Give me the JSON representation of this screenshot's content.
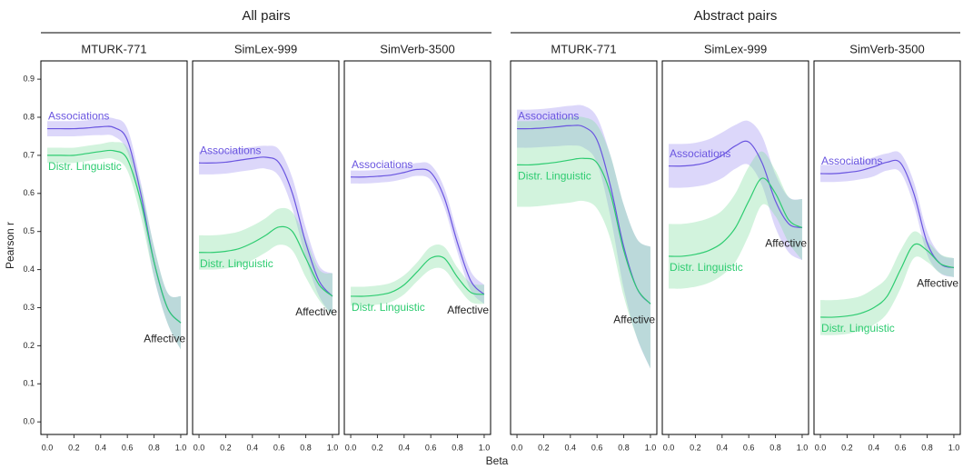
{
  "groups": [
    {
      "title": "All pairs"
    },
    {
      "title": "Abstract pairs"
    }
  ],
  "y_label": "Pearson r",
  "x_label": "Beta",
  "ylim": [
    -0.033,
    0.948
  ],
  "yticks": [
    {
      "value": 0,
      "label": "0.0"
    },
    0.1,
    0.2,
    0.3,
    0.4,
    0.5,
    0.6,
    0.7,
    0.8,
    0.9
  ],
  "xlim": [
    -0.048,
    1.048
  ],
  "xticks": [
    {
      "value": 0,
      "label": "0.0"
    },
    0.2,
    0.4,
    0.6,
    0.8,
    {
      "value": 1,
      "label": "1.0"
    }
  ],
  "chart_data": [
    {
      "type": "line",
      "title": "MTURK-771",
      "annotation": "Affective",
      "x": [
        0,
        0.1,
        0.2,
        0.3,
        0.4,
        0.5,
        0.6,
        0.7,
        0.8,
        0.9,
        1
      ],
      "series": [
        {
          "name": "Associations",
          "color": "#6a55e0",
          "band_color": "#9b8cf2",
          "values": [
            0.77,
            0.77,
            0.77,
            0.772,
            0.775,
            0.773,
            0.74,
            0.6,
            0.42,
            0.3,
            0.26
          ],
          "upper": [
            0.79,
            0.79,
            0.79,
            0.792,
            0.797,
            0.797,
            0.77,
            0.63,
            0.46,
            0.34,
            0.33
          ],
          "lower": [
            0.75,
            0.75,
            0.75,
            0.752,
            0.753,
            0.75,
            0.71,
            0.57,
            0.38,
            0.26,
            0.19
          ]
        },
        {
          "name": "Distr. Linguistic",
          "color": "#2ecc71",
          "band_color": "#7ddc9f",
          "values": [
            0.7,
            0.7,
            0.7,
            0.705,
            0.71,
            0.712,
            0.69,
            0.58,
            0.42,
            0.3,
            0.26
          ],
          "upper": [
            0.72,
            0.72,
            0.72,
            0.725,
            0.73,
            0.735,
            0.72,
            0.62,
            0.46,
            0.34,
            0.33
          ],
          "lower": [
            0.68,
            0.68,
            0.68,
            0.685,
            0.69,
            0.69,
            0.66,
            0.54,
            0.38,
            0.26,
            0.19
          ]
        }
      ]
    },
    {
      "type": "line",
      "title": "SimLex-999",
      "annotation": "Affective",
      "x": [
        0,
        0.1,
        0.2,
        0.3,
        0.4,
        0.5,
        0.6,
        0.7,
        0.8,
        0.9,
        1
      ],
      "series": [
        {
          "name": "Associations",
          "color": "#6a55e0",
          "band_color": "#9b8cf2",
          "values": [
            0.68,
            0.68,
            0.682,
            0.687,
            0.692,
            0.695,
            0.68,
            0.6,
            0.47,
            0.37,
            0.33
          ],
          "upper": [
            0.71,
            0.71,
            0.712,
            0.717,
            0.722,
            0.725,
            0.715,
            0.64,
            0.51,
            0.41,
            0.39
          ],
          "lower": [
            0.65,
            0.65,
            0.652,
            0.657,
            0.662,
            0.665,
            0.645,
            0.56,
            0.43,
            0.33,
            0.28
          ]
        },
        {
          "name": "Distr. Linguistic",
          "color": "#2ecc71",
          "band_color": "#7ddc9f",
          "values": [
            0.445,
            0.445,
            0.448,
            0.455,
            0.47,
            0.49,
            0.512,
            0.5,
            0.43,
            0.36,
            0.33
          ],
          "upper": [
            0.49,
            0.49,
            0.493,
            0.5,
            0.515,
            0.535,
            0.56,
            0.55,
            0.48,
            0.4,
            0.39
          ],
          "lower": [
            0.4,
            0.4,
            0.403,
            0.41,
            0.425,
            0.445,
            0.465,
            0.45,
            0.38,
            0.32,
            0.28
          ]
        }
      ]
    },
    {
      "type": "line",
      "title": "SimVerb-3500",
      "annotation": "Affective",
      "x": [
        0,
        0.1,
        0.2,
        0.3,
        0.4,
        0.5,
        0.6,
        0.7,
        0.8,
        0.9,
        1
      ],
      "series": [
        {
          "name": "Associations",
          "color": "#6a55e0",
          "band_color": "#9b8cf2",
          "values": [
            0.643,
            0.643,
            0.645,
            0.648,
            0.655,
            0.663,
            0.655,
            0.59,
            0.47,
            0.37,
            0.335
          ],
          "upper": [
            0.66,
            0.66,
            0.662,
            0.665,
            0.672,
            0.68,
            0.675,
            0.615,
            0.495,
            0.395,
            0.36
          ],
          "lower": [
            0.626,
            0.626,
            0.628,
            0.631,
            0.638,
            0.646,
            0.635,
            0.565,
            0.445,
            0.345,
            0.31
          ]
        },
        {
          "name": "Distr. Linguistic",
          "color": "#2ecc71",
          "band_color": "#7ddc9f",
          "values": [
            0.33,
            0.33,
            0.333,
            0.34,
            0.36,
            0.395,
            0.43,
            0.43,
            0.38,
            0.34,
            0.335
          ],
          "upper": [
            0.355,
            0.355,
            0.358,
            0.365,
            0.385,
            0.42,
            0.46,
            0.46,
            0.405,
            0.365,
            0.36
          ],
          "lower": [
            0.305,
            0.305,
            0.308,
            0.315,
            0.335,
            0.37,
            0.4,
            0.4,
            0.355,
            0.315,
            0.31
          ]
        }
      ]
    },
    {
      "type": "line",
      "title": "MTURK-771",
      "annotation": "Affective",
      "x": [
        0,
        0.1,
        0.2,
        0.3,
        0.4,
        0.5,
        0.6,
        0.7,
        0.8,
        0.9,
        1
      ],
      "series": [
        {
          "name": "Associations",
          "color": "#6a55e0",
          "band_color": "#9b8cf2",
          "values": [
            0.77,
            0.77,
            0.772,
            0.775,
            0.778,
            0.775,
            0.74,
            0.62,
            0.46,
            0.35,
            0.31
          ],
          "upper": [
            0.82,
            0.82,
            0.822,
            0.826,
            0.83,
            0.83,
            0.8,
            0.7,
            0.57,
            0.48,
            0.46
          ],
          "lower": [
            0.72,
            0.72,
            0.722,
            0.724,
            0.726,
            0.72,
            0.68,
            0.54,
            0.35,
            0.22,
            0.14
          ]
        },
        {
          "name": "Distr. Linguistic",
          "color": "#2ecc71",
          "band_color": "#7ddc9f",
          "values": [
            0.675,
            0.675,
            0.678,
            0.682,
            0.688,
            0.692,
            0.68,
            0.6,
            0.45,
            0.35,
            0.31
          ],
          "upper": [
            0.79,
            0.79,
            0.792,
            0.796,
            0.8,
            0.8,
            0.78,
            0.7,
            0.57,
            0.48,
            0.46
          ],
          "lower": [
            0.565,
            0.565,
            0.568,
            0.572,
            0.576,
            0.58,
            0.56,
            0.48,
            0.33,
            0.22,
            0.14
          ]
        }
      ]
    },
    {
      "type": "line",
      "title": "SimLex-999",
      "annotation": "Affective",
      "x": [
        0,
        0.1,
        0.2,
        0.3,
        0.4,
        0.5,
        0.6,
        0.7,
        0.8,
        0.9,
        1
      ],
      "series": [
        {
          "name": "Associations",
          "color": "#6a55e0",
          "band_color": "#9b8cf2",
          "values": [
            0.672,
            0.672,
            0.675,
            0.683,
            0.7,
            0.725,
            0.735,
            0.68,
            0.58,
            0.52,
            0.51
          ],
          "upper": [
            0.73,
            0.73,
            0.733,
            0.742,
            0.76,
            0.78,
            0.79,
            0.75,
            0.65,
            0.59,
            0.585
          ],
          "lower": [
            0.615,
            0.615,
            0.618,
            0.625,
            0.64,
            0.665,
            0.675,
            0.62,
            0.51,
            0.445,
            0.425
          ]
        },
        {
          "name": "Distr. Linguistic",
          "color": "#2ecc71",
          "band_color": "#7ddc9f",
          "values": [
            0.435,
            0.435,
            0.44,
            0.45,
            0.47,
            0.51,
            0.58,
            0.64,
            0.6,
            0.53,
            0.51
          ],
          "upper": [
            0.52,
            0.52,
            0.525,
            0.535,
            0.555,
            0.6,
            0.67,
            0.71,
            0.66,
            0.59,
            0.585
          ],
          "lower": [
            0.35,
            0.35,
            0.355,
            0.365,
            0.385,
            0.42,
            0.49,
            0.57,
            0.54,
            0.47,
            0.425
          ]
        }
      ]
    },
    {
      "type": "line",
      "title": "SimVerb-3500",
      "annotation": "Affective",
      "x": [
        0,
        0.1,
        0.2,
        0.3,
        0.4,
        0.5,
        0.6,
        0.7,
        0.8,
        0.9,
        1
      ],
      "series": [
        {
          "name": "Associations",
          "color": "#6a55e0",
          "band_color": "#9b8cf2",
          "values": [
            0.652,
            0.652,
            0.655,
            0.66,
            0.67,
            0.682,
            0.68,
            0.6,
            0.47,
            0.415,
            0.405
          ],
          "upper": [
            0.675,
            0.675,
            0.678,
            0.683,
            0.695,
            0.705,
            0.705,
            0.63,
            0.5,
            0.44,
            0.43
          ],
          "lower": [
            0.63,
            0.63,
            0.632,
            0.637,
            0.645,
            0.66,
            0.655,
            0.57,
            0.44,
            0.39,
            0.38
          ]
        },
        {
          "name": "Distr. Linguistic",
          "color": "#2ecc71",
          "band_color": "#7ddc9f",
          "values": [
            0.275,
            0.275,
            0.278,
            0.285,
            0.3,
            0.33,
            0.4,
            0.465,
            0.45,
            0.415,
            0.405
          ],
          "upper": [
            0.32,
            0.32,
            0.323,
            0.33,
            0.35,
            0.38,
            0.45,
            0.5,
            0.475,
            0.44,
            0.43
          ],
          "lower": [
            0.228,
            0.228,
            0.231,
            0.24,
            0.255,
            0.285,
            0.35,
            0.43,
            0.42,
            0.39,
            0.38
          ]
        }
      ]
    }
  ]
}
